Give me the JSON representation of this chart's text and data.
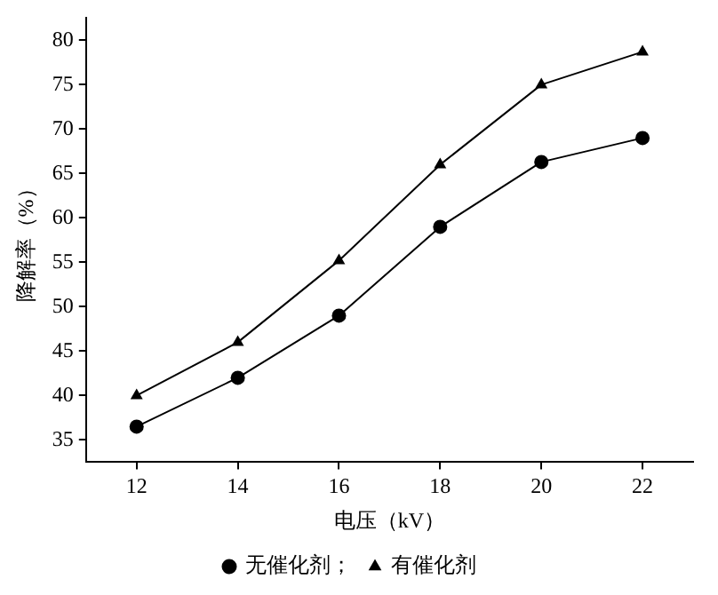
{
  "chart_data": {
    "type": "line",
    "xlabel": "电压（kV）",
    "ylabel": "降解率（%）",
    "x": [
      12,
      14,
      16,
      18,
      20,
      22
    ],
    "series": [
      {
        "name": "无催化剂；",
        "color": "#000000",
        "marker": "circle",
        "values": [
          36.5,
          42,
          49,
          59,
          66.3,
          69
        ]
      },
      {
        "name": "有催化剂",
        "color": "#000000",
        "marker": "triangle",
        "values": [
          40,
          46,
          55.2,
          66,
          75,
          78.7
        ]
      }
    ],
    "xlim": [
      11,
      23
    ],
    "xticks": [
      12,
      14,
      16,
      18,
      20,
      22
    ],
    "ylim": [
      32.5,
      82.5
    ],
    "yticks": [
      35,
      40,
      45,
      50,
      55,
      60,
      65,
      70,
      75,
      80
    ],
    "grid": false,
    "legend": "bottom",
    "line_style": "solid"
  }
}
